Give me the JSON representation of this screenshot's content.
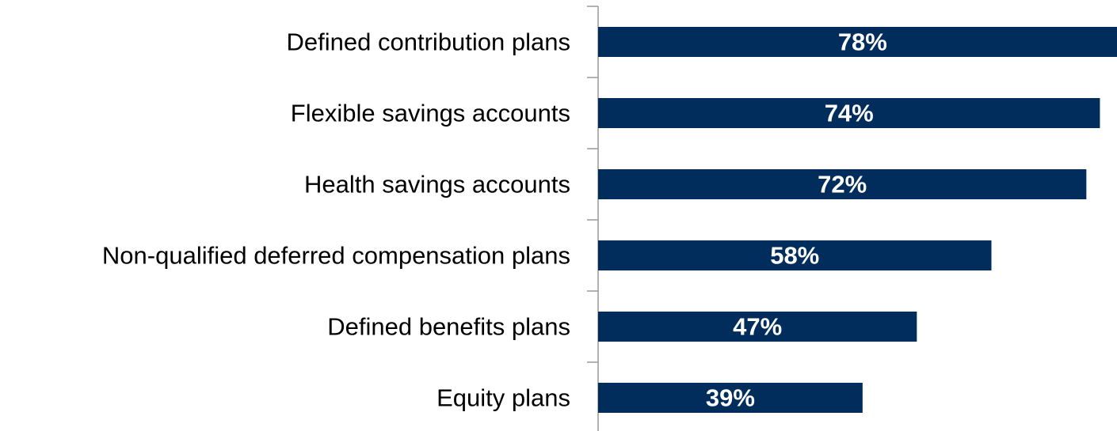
{
  "chart_data": {
    "type": "bar",
    "orientation": "horizontal",
    "categories": [
      "Defined contribution plans",
      "Flexible savings accounts",
      "Health savings accounts",
      "Non-qualified deferred compensation plans",
      "Defined benefits plans",
      "Equity plans"
    ],
    "values": [
      78,
      74,
      72,
      58,
      47,
      39
    ],
    "value_labels": [
      "78%",
      "74%",
      "72%",
      "58%",
      "47%",
      "39%"
    ],
    "color": "#002d5c"
  }
}
